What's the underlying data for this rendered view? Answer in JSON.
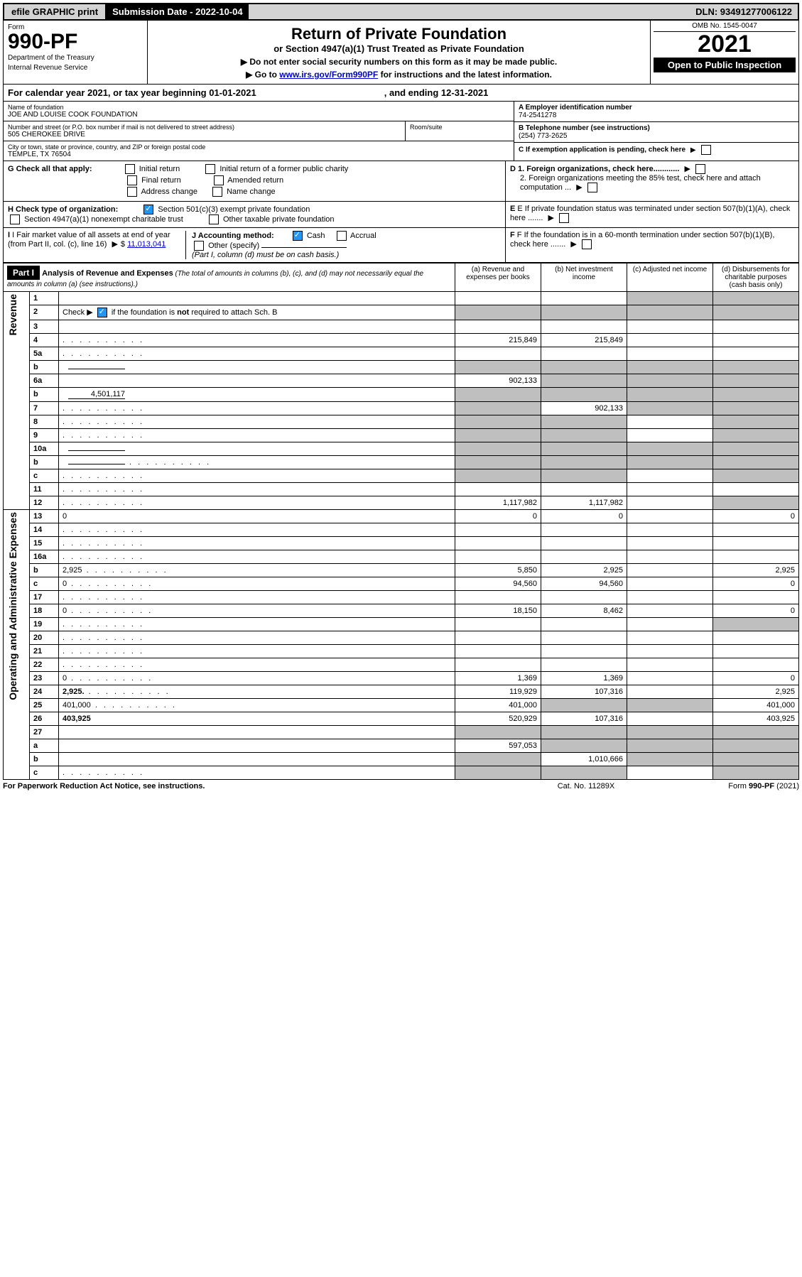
{
  "topbar": {
    "efile": "efile GRAPHIC print",
    "submission": "Submission Date - 2022-10-04",
    "dln": "DLN: 93491277006122"
  },
  "header": {
    "form_label": "Form",
    "form_number": "990-PF",
    "dept1": "Department of the Treasury",
    "dept2": "Internal Revenue Service",
    "title": "Return of Private Foundation",
    "subtitle": "or Section 4947(a)(1) Trust Treated as Private Foundation",
    "note1": "▶ Do not enter social security numbers on this form as it may be made public.",
    "note2_pre": "▶ Go to ",
    "note2_link": "www.irs.gov/Form990PF",
    "note2_post": " for instructions and the latest information.",
    "omb": "OMB No. 1545-0047",
    "year": "2021",
    "open": "Open to Public Inspection"
  },
  "calendar": {
    "text": "For calendar year 2021, or tax year beginning 01-01-2021",
    "ending": ", and ending 12-31-2021"
  },
  "info": {
    "name_label": "Name of foundation",
    "name": "JOE AND LOUISE COOK FOUNDATION",
    "addr_label": "Number and street (or P.O. box number if mail is not delivered to street address)",
    "addr": "505 CHEROKEE DRIVE",
    "room_label": "Room/suite",
    "city_label": "City or town, state or province, country, and ZIP or foreign postal code",
    "city": "TEMPLE, TX  76504",
    "a_label": "A Employer identification number",
    "a_val": "74-2541278",
    "b_label": "B Telephone number (see instructions)",
    "b_val": "(254) 773-2625",
    "c_label": "C If exemption application is pending, check here",
    "d1": "D 1. Foreign organizations, check here............",
    "d2": "2. Foreign organizations meeting the 85% test, check here and attach computation ...",
    "e_label": "E  If private foundation status was terminated under section 507(b)(1)(A), check here .......",
    "f_label": "F  If the foundation is in a 60-month termination under section 507(b)(1)(B), check here .......",
    "g_label": "G Check all that apply:",
    "g_opts": [
      "Initial return",
      "Initial return of a former public charity",
      "Final return",
      "Amended return",
      "Address change",
      "Name change"
    ],
    "h_label": "H Check type of organization:",
    "h_opt1": "Section 501(c)(3) exempt private foundation",
    "h_opt2": "Section 4947(a)(1) nonexempt charitable trust",
    "h_opt3": "Other taxable private foundation",
    "i_label": "I Fair market value of all assets at end of year (from Part II, col. (c), line 16)",
    "i_val": "11,013,041",
    "j_label": "J Accounting method:",
    "j_cash": "Cash",
    "j_accrual": "Accrual",
    "j_other": "Other (specify)",
    "j_note": "(Part I, column (d) must be on cash basis.)"
  },
  "part1": {
    "header": "Part I",
    "title": "Analysis of Revenue and Expenses",
    "title_note": " (The total of amounts in columns (b), (c), and (d) may not necessarily equal the amounts in column (a) (see instructions).)",
    "cols": {
      "a": "(a)   Revenue and expenses per books",
      "b": "(b)   Net investment income",
      "c": "(c)   Adjusted net income",
      "d": "(d)   Disbursements for charitable purposes (cash basis only)"
    },
    "side_revenue": "Revenue",
    "side_expenses": "Operating and Administrative Expenses"
  },
  "rows": [
    {
      "n": "1",
      "d": "",
      "a": "",
      "b": "",
      "c": "",
      "grey_cd": true
    },
    {
      "n": "2",
      "d": "",
      "a": "",
      "b": "",
      "c": "",
      "grey_abcd": true,
      "is_check": true
    },
    {
      "n": "3",
      "d": "",
      "a": "",
      "b": "",
      "c": ""
    },
    {
      "n": "4",
      "d": "",
      "a": "215,849",
      "b": "215,849",
      "c": "",
      "dots": true
    },
    {
      "n": "5a",
      "d": "",
      "a": "",
      "b": "",
      "c": "",
      "dots": true
    },
    {
      "n": "b",
      "d": "",
      "a": "",
      "b": "",
      "c": "",
      "grey_abcd": true,
      "inline": true
    },
    {
      "n": "6a",
      "d": "",
      "a": "902,133",
      "b": "",
      "c": "",
      "grey_bcd": true
    },
    {
      "n": "b",
      "d": "",
      "a": "",
      "b": "",
      "c": "",
      "grey_abcd": true,
      "inline": true,
      "inline_val": "4,501,117"
    },
    {
      "n": "7",
      "d": "",
      "a": "",
      "b": "902,133",
      "c": "",
      "grey_a": true,
      "grey_cd": true,
      "dots": true
    },
    {
      "n": "8",
      "d": "",
      "a": "",
      "b": "",
      "c": "",
      "grey_ab": true,
      "grey_d": true,
      "dots": true
    },
    {
      "n": "9",
      "d": "",
      "a": "",
      "b": "",
      "c": "",
      "grey_ab": true,
      "grey_d": true,
      "dots": true
    },
    {
      "n": "10a",
      "d": "",
      "a": "",
      "b": "",
      "c": "",
      "grey_abcd": true,
      "inline": true
    },
    {
      "n": "b",
      "d": "",
      "a": "",
      "b": "",
      "c": "",
      "grey_abcd": true,
      "inline": true,
      "dots": true
    },
    {
      "n": "c",
      "d": "",
      "a": "",
      "b": "",
      "c": "",
      "grey_ab": true,
      "grey_d": true,
      "dots": true
    },
    {
      "n": "11",
      "d": "",
      "a": "",
      "b": "",
      "c": "",
      "dots": true
    },
    {
      "n": "12",
      "d": "",
      "a": "1,117,982",
      "b": "1,117,982",
      "c": "",
      "bold": true,
      "grey_d": true,
      "dots": true
    },
    {
      "n": "13",
      "d": "0",
      "a": "0",
      "b": "0",
      "c": ""
    },
    {
      "n": "14",
      "d": "",
      "a": "",
      "b": "",
      "c": "",
      "dots": true
    },
    {
      "n": "15",
      "d": "",
      "a": "",
      "b": "",
      "c": "",
      "dots": true
    },
    {
      "n": "16a",
      "d": "",
      "a": "",
      "b": "",
      "c": "",
      "dots": true
    },
    {
      "n": "b",
      "d": "2,925",
      "a": "5,850",
      "b": "2,925",
      "c": "",
      "dots": true
    },
    {
      "n": "c",
      "d": "0",
      "a": "94,560",
      "b": "94,560",
      "c": "",
      "dots": true
    },
    {
      "n": "17",
      "d": "",
      "a": "",
      "b": "",
      "c": "",
      "dots": true
    },
    {
      "n": "18",
      "d": "0",
      "a": "18,150",
      "b": "8,462",
      "c": "",
      "dots": true
    },
    {
      "n": "19",
      "d": "",
      "a": "",
      "b": "",
      "c": "",
      "grey_d": true,
      "dots": true
    },
    {
      "n": "20",
      "d": "",
      "a": "",
      "b": "",
      "c": "",
      "dots": true
    },
    {
      "n": "21",
      "d": "",
      "a": "",
      "b": "",
      "c": "",
      "dots": true
    },
    {
      "n": "22",
      "d": "",
      "a": "",
      "b": "",
      "c": "",
      "dots": true
    },
    {
      "n": "23",
      "d": "0",
      "a": "1,369",
      "b": "1,369",
      "c": "",
      "dots": true
    },
    {
      "n": "24",
      "d": "2,925",
      "a": "119,929",
      "b": "107,316",
      "c": "",
      "bold_first": true,
      "dots": true
    },
    {
      "n": "25",
      "d": "401,000",
      "a": "401,000",
      "b": "",
      "c": "",
      "grey_bc": true,
      "dots": true
    },
    {
      "n": "26",
      "d": "403,925",
      "a": "520,929",
      "b": "107,316",
      "c": "",
      "bold": true
    },
    {
      "n": "27",
      "d": "",
      "a": "",
      "b": "",
      "c": "",
      "grey_abcd": true
    },
    {
      "n": "a",
      "d": "",
      "a": "597,053",
      "b": "",
      "c": "",
      "grey_bcd": true,
      "bold": true
    },
    {
      "n": "b",
      "d": "",
      "a": "",
      "b": "1,010,666",
      "c": "",
      "grey_a": true,
      "grey_cd": true,
      "bold": true
    },
    {
      "n": "c",
      "d": "",
      "a": "",
      "b": "",
      "c": "",
      "grey_ab": true,
      "grey_d": true,
      "bold": true,
      "dots": true
    }
  ],
  "footer": {
    "left": "For Paperwork Reduction Act Notice, see instructions.",
    "center": "Cat. No. 11289X",
    "right": "Form 990-PF (2021)"
  }
}
